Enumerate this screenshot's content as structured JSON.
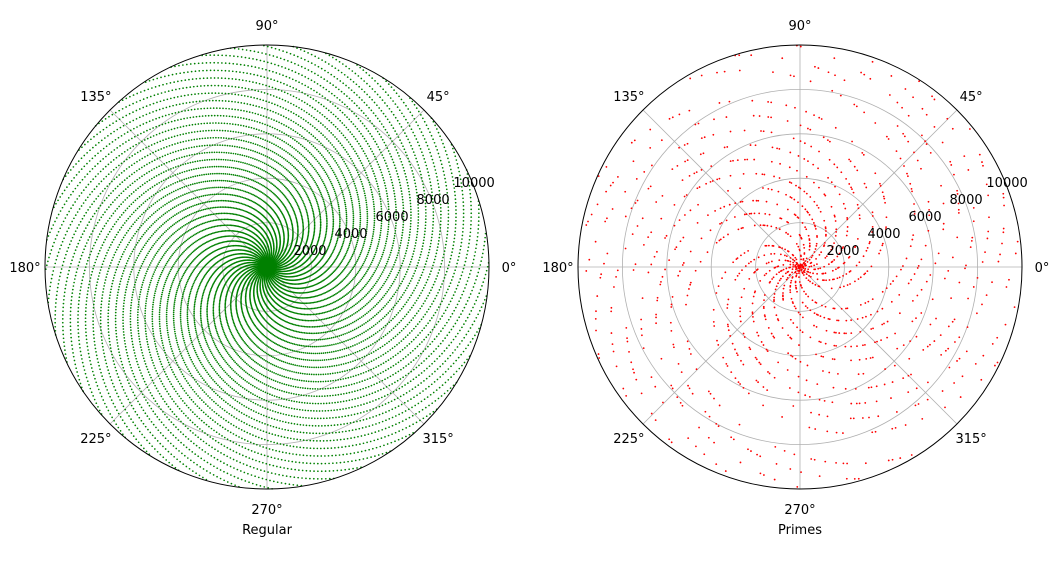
{
  "chart_data": [
    {
      "type": "scatter",
      "projection": "polar",
      "xlabel": "Regular",
      "rmax": 10000,
      "radial_ticks": [
        "2000",
        "4000",
        "6000",
        "8000",
        "10000"
      ],
      "angle_ticks": [
        "0°",
        "45°",
        "90°",
        "135°",
        "180°",
        "225°",
        "270°",
        "315°"
      ],
      "series": [
        {
          "rule": "integers n = 1..10000, plotted at (theta = n rad, r = n)",
          "n_max": 10000,
          "color": "#008000"
        }
      ],
      "grid": true
    },
    {
      "type": "scatter",
      "projection": "polar",
      "xlabel": "Primes",
      "rmax": 10000,
      "radial_ticks": [
        "2000",
        "4000",
        "6000",
        "8000",
        "10000"
      ],
      "angle_ticks": [
        "0°",
        "45°",
        "90°",
        "135°",
        "180°",
        "225°",
        "270°",
        "315°"
      ],
      "series": [
        {
          "rule": "primes p ≤ 10000, plotted at (theta = p rad, r = p)",
          "n_max": 10000,
          "color": "#ff0000"
        }
      ],
      "grid": true
    }
  ]
}
